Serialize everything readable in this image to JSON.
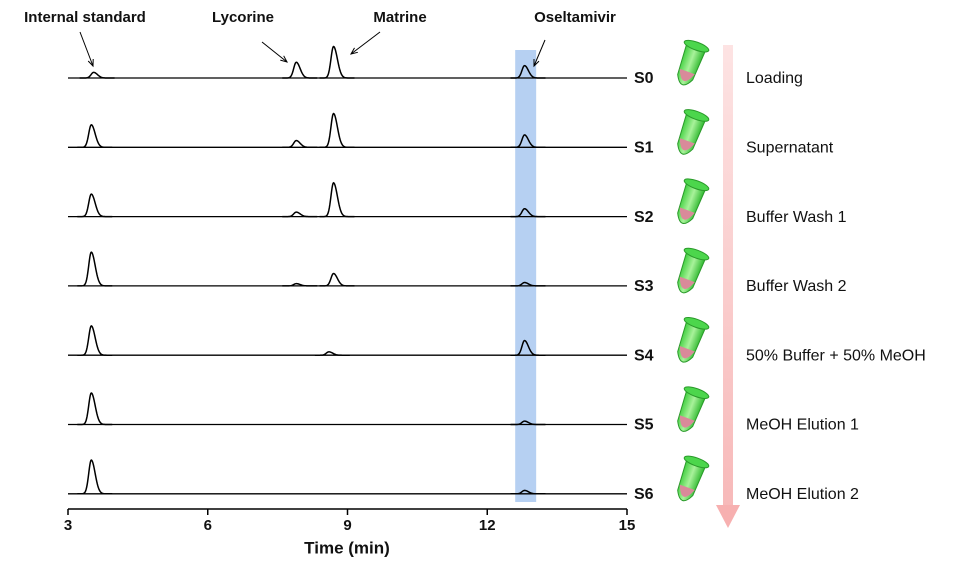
{
  "chart_data": {
    "type": "chromatogram",
    "xlabel": "Time (min)",
    "xlim": [
      3,
      15
    ],
    "xticks": [
      3,
      6,
      9,
      12,
      15
    ],
    "ylim": [
      0,
      40
    ],
    "highlight_xrange": [
      12.6,
      13.05
    ],
    "highlight_color": "#a9c8f0",
    "annotations": [
      {
        "text": "Internal standard",
        "x": 3.55
      },
      {
        "text": "Lycorine",
        "x": 7.9
      },
      {
        "text": "Matrine",
        "x": 8.7
      },
      {
        "text": "Oseltamivir",
        "x": 12.8
      }
    ],
    "series": [
      {
        "name": "S0",
        "stage": "Loading",
        "color": "#000000",
        "x": [
          3.55,
          7.9,
          8.7,
          12.8
        ],
        "values": [
          5,
          14,
          28,
          11
        ]
      },
      {
        "name": "S1",
        "stage": "Supernatant",
        "color": "#000000",
        "x": [
          3.5,
          7.9,
          8.7,
          12.8
        ],
        "values": [
          20,
          6,
          30,
          11
        ]
      },
      {
        "name": "S2",
        "stage": "Buffer Wash 1",
        "color": "#000000",
        "x": [
          3.5,
          7.9,
          8.7,
          12.8
        ],
        "values": [
          20,
          4,
          30,
          7
        ]
      },
      {
        "name": "S3",
        "stage": "Buffer Wash 2",
        "color": "#000000",
        "x": [
          3.5,
          7.9,
          8.7,
          12.8
        ],
        "values": [
          30,
          2,
          11,
          3
        ]
      },
      {
        "name": "S4",
        "stage": "50% Buffer + 50% MeOH",
        "color": "#000000",
        "x": [
          3.5,
          8.6,
          12.8
        ],
        "values": [
          26,
          3,
          13
        ]
      },
      {
        "name": "S5",
        "stage": "MeOH Elution 1",
        "color": "#000000",
        "x": [
          3.5,
          12.8
        ],
        "values": [
          28,
          3
        ]
      },
      {
        "name": "S6",
        "stage": "MeOH Elution 2",
        "color": "#000000",
        "x": [
          3.5,
          12.8
        ],
        "values": [
          30,
          3
        ]
      }
    ]
  }
}
